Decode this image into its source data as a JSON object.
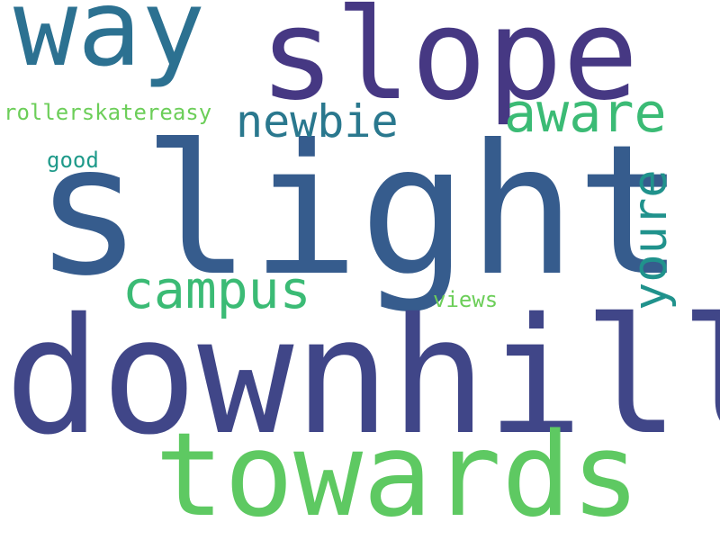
{
  "words": {
    "way": {
      "text": "way",
      "color": "#2c7191"
    },
    "slope": {
      "text": "slope",
      "color": "#463883"
    },
    "slight": {
      "text": "slight",
      "color": "#365c8d"
    },
    "downhill": {
      "text": "downhill",
      "color": "#404688"
    },
    "towards": {
      "text": "towards",
      "color": "#5ec962"
    },
    "newbie": {
      "text": "newbie",
      "color": "#2a788e"
    },
    "aware": {
      "text": "aware",
      "color": "#3bbb75"
    },
    "youre": {
      "text": "youre",
      "color": "#20928c"
    },
    "campus": {
      "text": "campus",
      "color": "#3bbb75"
    },
    "rollerskatereasy": {
      "text": "rollerskatereasy",
      "color": "#6cce59"
    },
    "good": {
      "text": "good",
      "color": "#1f9a8a"
    },
    "views": {
      "text": "views",
      "color": "#6cce59"
    }
  }
}
